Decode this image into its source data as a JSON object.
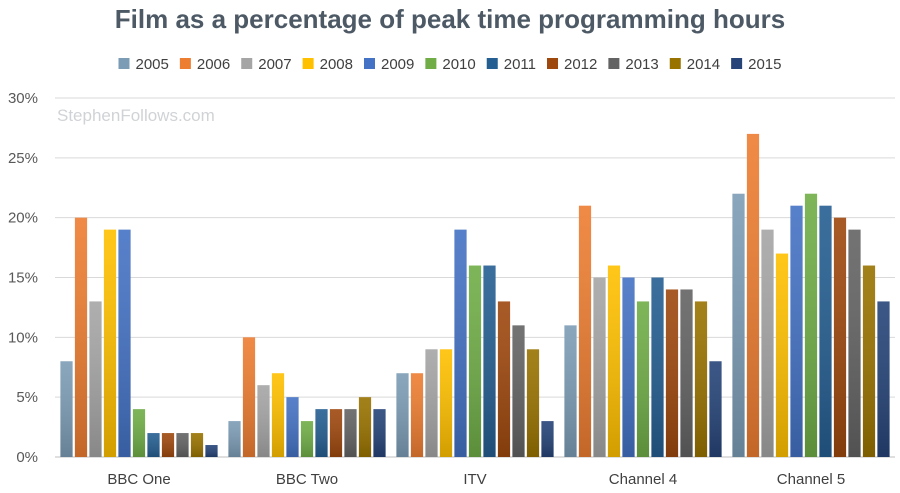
{
  "chart_data": {
    "type": "bar",
    "title": "Film as a percentage of peak time programming hours",
    "watermark": "StephenFollows.com",
    "xlabel": "",
    "ylabel": "",
    "ylim": [
      0,
      30
    ],
    "yticks": [
      "0%",
      "5%",
      "10%",
      "15%",
      "20%",
      "25%",
      "30%"
    ],
    "ytick_values": [
      0,
      5,
      10,
      15,
      20,
      25,
      30
    ],
    "grid": true,
    "legend_position": "top",
    "categories": [
      "BBC One",
      "BBC Two",
      "ITV",
      "Channel 4",
      "Channel 5"
    ],
    "series": [
      {
        "name": "2005",
        "color": "#7c9cb5",
        "values": [
          8,
          3,
          7,
          11,
          22
        ]
      },
      {
        "name": "2006",
        "color": "#ed7d31",
        "values": [
          20,
          10,
          7,
          21,
          27
        ]
      },
      {
        "name": "2007",
        "color": "#a5a5a5",
        "values": [
          13,
          6,
          9,
          15,
          19
        ]
      },
      {
        "name": "2008",
        "color": "#ffc000",
        "values": [
          19,
          7,
          9,
          16,
          17
        ]
      },
      {
        "name": "2009",
        "color": "#4472c4",
        "values": [
          19,
          5,
          19,
          15,
          21
        ]
      },
      {
        "name": "2010",
        "color": "#70ad47",
        "values": [
          4,
          3,
          16,
          13,
          22
        ]
      },
      {
        "name": "2011",
        "color": "#255e91",
        "values": [
          2,
          4,
          16,
          15,
          21
        ]
      },
      {
        "name": "2012",
        "color": "#9e480e",
        "values": [
          2,
          4,
          13,
          14,
          20
        ]
      },
      {
        "name": "2013",
        "color": "#636363",
        "values": [
          2,
          4,
          11,
          14,
          19
        ]
      },
      {
        "name": "2014",
        "color": "#997300",
        "values": [
          2,
          5,
          9,
          13,
          16
        ]
      },
      {
        "name": "2015",
        "color": "#264478",
        "values": [
          1,
          4,
          3,
          8,
          13
        ]
      }
    ]
  }
}
